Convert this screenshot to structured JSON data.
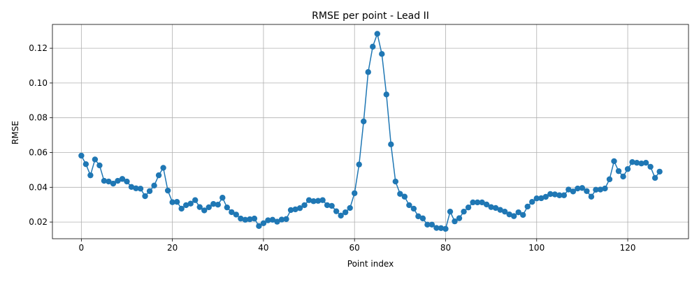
{
  "chart_data": {
    "type": "line",
    "title": "RMSE per point - Lead II",
    "xlabel": "Point index",
    "ylabel": "RMSE",
    "xlim": [
      -6.35,
      133.35
    ],
    "ylim": [
      0.0104,
      0.1337
    ],
    "xticks": [
      0,
      20,
      40,
      60,
      80,
      100,
      120
    ],
    "yticks": [
      0.02,
      0.04,
      0.06,
      0.08,
      0.1,
      0.12
    ],
    "ytick_labels": [
      "0.02",
      "0.04",
      "0.06",
      "0.08",
      "0.10",
      "0.12"
    ],
    "grid": true,
    "marker": "circle",
    "color": "#1f77b4",
    "series": [
      {
        "x": [
          0,
          1,
          2,
          3,
          4,
          5,
          6,
          7,
          8,
          9,
          10,
          11,
          12,
          13,
          14,
          15,
          16,
          17,
          18,
          19,
          20,
          21,
          22,
          23,
          24,
          25,
          26,
          27,
          28,
          29,
          30,
          31,
          32,
          33,
          34,
          35,
          36,
          37,
          38,
          39,
          40,
          41,
          42,
          43,
          44,
          45,
          46,
          47,
          48,
          49,
          50,
          51,
          52,
          53,
          54,
          55,
          56,
          57,
          58,
          59,
          60,
          61,
          62,
          63,
          64,
          65,
          66,
          67,
          68,
          69,
          70,
          71,
          72,
          73,
          74,
          75,
          76,
          77,
          78,
          79,
          80,
          81,
          82,
          83,
          84,
          85,
          86,
          87,
          88,
          89,
          90,
          91,
          92,
          93,
          94,
          95,
          96,
          97,
          98,
          99,
          100,
          101,
          102,
          103,
          104,
          105,
          106,
          107,
          108,
          109,
          110,
          111,
          112,
          113,
          114,
          115,
          116,
          117,
          118,
          119,
          120,
          121,
          122,
          123,
          124,
          125,
          126,
          127
        ],
        "values": [
          0.0582,
          0.0533,
          0.0469,
          0.056,
          0.0526,
          0.0437,
          0.0433,
          0.0421,
          0.0437,
          0.0448,
          0.0433,
          0.0402,
          0.0394,
          0.0392,
          0.0349,
          0.0378,
          0.041,
          0.0469,
          0.0512,
          0.0381,
          0.0314,
          0.0316,
          0.0277,
          0.0297,
          0.0306,
          0.0326,
          0.0286,
          0.0267,
          0.0285,
          0.0304,
          0.03,
          0.034,
          0.0284,
          0.0257,
          0.0243,
          0.022,
          0.0213,
          0.0216,
          0.022,
          0.0177,
          0.0193,
          0.021,
          0.0213,
          0.0202,
          0.0214,
          0.0217,
          0.0269,
          0.0273,
          0.028,
          0.0297,
          0.0326,
          0.032,
          0.0322,
          0.0326,
          0.0297,
          0.0293,
          0.0262,
          0.0237,
          0.0256,
          0.0281,
          0.0366,
          0.0531,
          0.0779,
          0.1063,
          0.1209,
          0.1283,
          0.1167,
          0.0934,
          0.0647,
          0.0433,
          0.0362,
          0.0346,
          0.0297,
          0.0277,
          0.0233,
          0.0221,
          0.0185,
          0.0185,
          0.0166,
          0.0165,
          0.0161,
          0.026,
          0.0204,
          0.0222,
          0.026,
          0.0284,
          0.0313,
          0.0313,
          0.0313,
          0.0301,
          0.0286,
          0.0281,
          0.027,
          0.026,
          0.0244,
          0.0234,
          0.0256,
          0.0241,
          0.0289,
          0.0316,
          0.0336,
          0.0337,
          0.0345,
          0.0361,
          0.0359,
          0.0354,
          0.0354,
          0.0387,
          0.0376,
          0.0393,
          0.0396,
          0.0378,
          0.0346,
          0.0386,
          0.0387,
          0.0393,
          0.0446,
          0.055,
          0.0493,
          0.0462,
          0.0505,
          0.0545,
          0.0541,
          0.0537,
          0.0541,
          0.0518,
          0.0454,
          0.049
        ]
      }
    ]
  }
}
